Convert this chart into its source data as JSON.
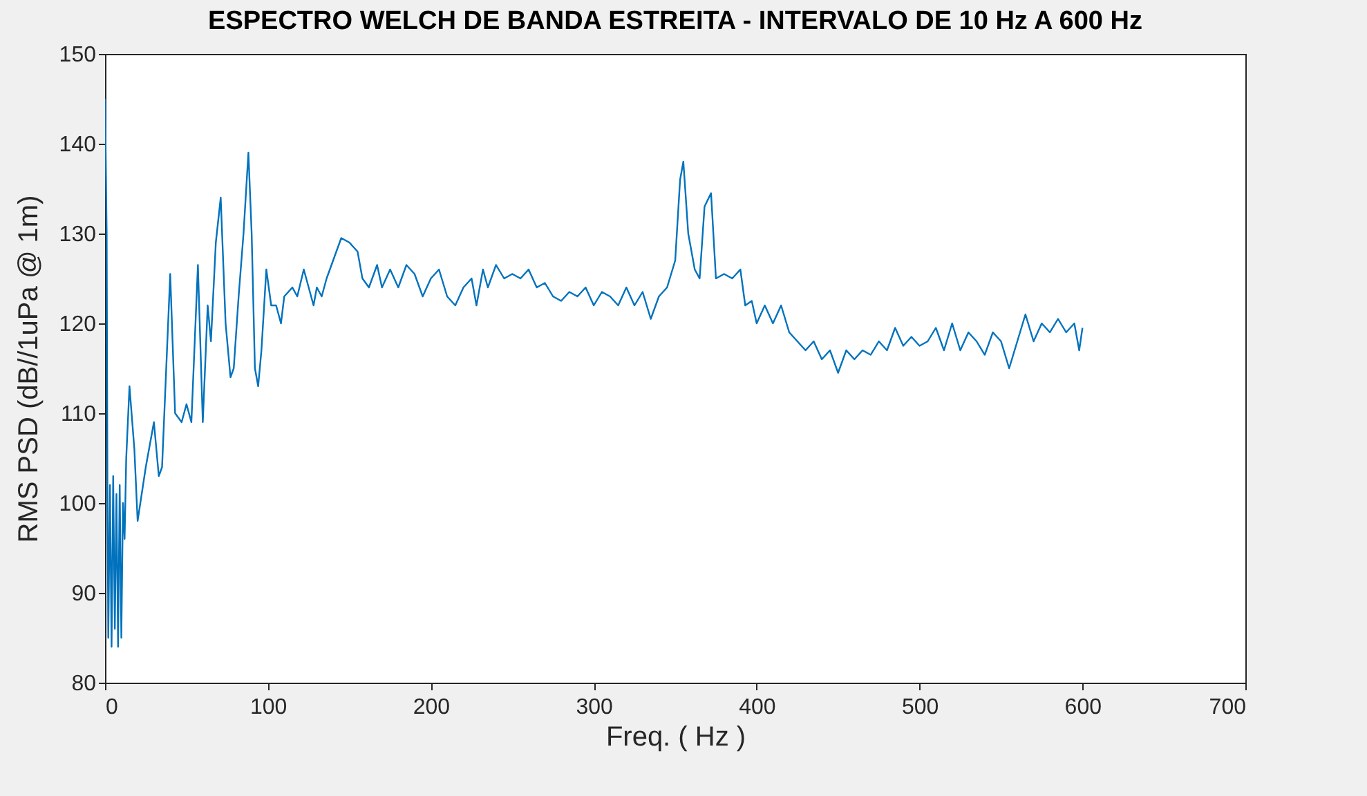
{
  "chart_data": {
    "type": "line",
    "title": "ESPECTRO WELCH DE BANDA ESTREITA - INTERVALO DE 10 Hz A 600 Hz",
    "xlabel": "Freq. ( Hz )",
    "ylabel": "RMS PSD (dB//1uPa @ 1m)",
    "xlim": [
      0,
      700
    ],
    "xticks": [
      0,
      100,
      200,
      300,
      400,
      500,
      600,
      700
    ],
    "ylim": [
      80,
      150
    ],
    "yticks": [
      80,
      90,
      100,
      110,
      120,
      130,
      140,
      150
    ],
    "grid": false,
    "series": [
      {
        "color": "#0072bd",
        "x": [
          0,
          1,
          1.5,
          2,
          3,
          4,
          5,
          6,
          7,
          8,
          9,
          10,
          11,
          12,
          13,
          15,
          18,
          20,
          25,
          30,
          33,
          35,
          40,
          43,
          47,
          50,
          53,
          57,
          60,
          63,
          65,
          68,
          71,
          74,
          77,
          79,
          82,
          85,
          88,
          90,
          92,
          94,
          96,
          99,
          102,
          105,
          108,
          110,
          115,
          118,
          122,
          125,
          128,
          130,
          133,
          136,
          140,
          145,
          150,
          155,
          158,
          162,
          167,
          170,
          175,
          180,
          185,
          190,
          195,
          200,
          205,
          210,
          215,
          220,
          225,
          228,
          232,
          235,
          240,
          245,
          250,
          255,
          260,
          265,
          270,
          275,
          280,
          285,
          290,
          295,
          300,
          305,
          310,
          315,
          320,
          325,
          330,
          335,
          340,
          345,
          350,
          353,
          355,
          358,
          362,
          365,
          368,
          372,
          375,
          380,
          385,
          390,
          393,
          397,
          400,
          405,
          410,
          415,
          420,
          425,
          430,
          435,
          440,
          445,
          450,
          455,
          460,
          465,
          470,
          475,
          480,
          485,
          490,
          495,
          500,
          505,
          510,
          515,
          520,
          525,
          530,
          535,
          540,
          545,
          550,
          555,
          560,
          565,
          570,
          575,
          580,
          585,
          590,
          595,
          598,
          600
        ],
        "values": [
          145,
          130,
          100,
          85,
          102,
          84,
          103,
          86,
          101,
          84,
          102,
          85,
          100,
          96,
          105,
          113,
          106,
          98,
          104,
          109,
          103,
          104,
          125.5,
          110,
          109,
          111,
          109,
          126.5,
          109,
          122,
          118,
          129,
          134,
          120,
          114,
          115,
          123,
          130,
          139,
          130,
          115,
          113,
          117,
          126,
          122,
          122,
          120,
          123,
          124,
          123,
          126,
          124,
          122,
          124,
          123,
          125,
          127,
          129.5,
          129,
          128,
          125,
          124,
          126.5,
          124,
          126,
          124,
          126.5,
          125.5,
          123,
          125,
          126,
          123,
          122,
          124,
          125,
          122,
          126,
          124,
          126.5,
          125,
          125.5,
          125,
          126,
          124,
          124.5,
          123,
          122.5,
          123.5,
          123,
          124,
          122,
          123.5,
          123,
          122,
          124,
          122,
          123.5,
          120.5,
          123,
          124,
          127,
          136,
          138,
          130,
          126,
          125,
          133,
          134.5,
          125,
          125.5,
          125,
          126,
          122,
          122.5,
          120,
          122,
          120,
          122,
          119,
          118,
          117,
          118,
          116,
          117,
          114.5,
          117,
          116,
          117,
          116.5,
          118,
          117,
          119.5,
          117.5,
          118.5,
          117.5,
          118,
          119.5,
          117,
          120,
          117,
          119,
          118,
          116.5,
          119,
          118,
          115,
          118,
          121,
          118,
          120,
          119,
          120.5,
          119,
          120,
          117,
          119.5
        ]
      }
    ]
  }
}
